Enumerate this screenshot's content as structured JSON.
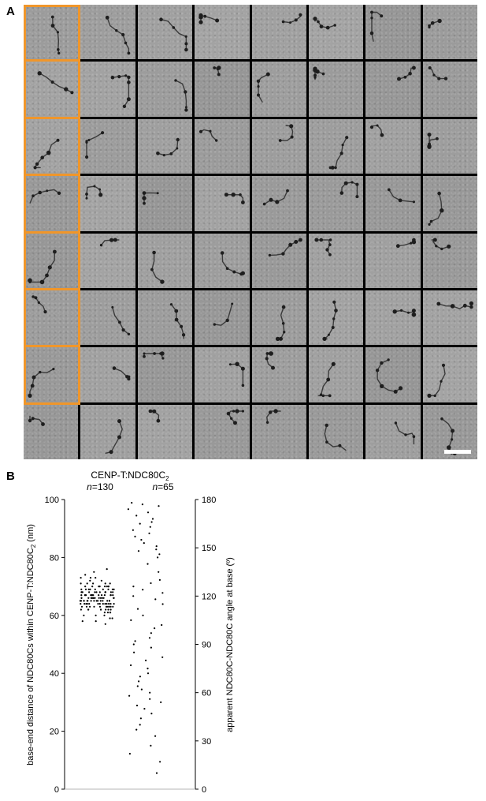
{
  "figure": {
    "panel_a_label": "A",
    "panel_b_label": "B",
    "panel_a": {
      "rows": 8,
      "cols": 8,
      "highlight_color": "#f0962a",
      "highlight_col": 0,
      "highlight_rows": 7
    },
    "panel_b_title": "CENP-T:NDC80C",
    "panel_b_title_sub": "2",
    "n_left_label": "n",
    "n_left_value": "=130",
    "n_right_label": "n",
    "n_right_value": "=65"
  },
  "chart_data": {
    "type": "scatter",
    "left_axis": {
      "label_main": "base-end distance of NDC80Cs within CENP-T:NDC80C",
      "label_sub": "2",
      "label_unit": " (nm)",
      "ticks": [
        "0",
        "20",
        "40",
        "60",
        "80",
        "100"
      ],
      "range": [
        0,
        100
      ]
    },
    "right_axis": {
      "label": "apparent NDC80C-NDC80C angle at base (º)",
      "ticks": [
        "0",
        "30",
        "60",
        "90",
        "120",
        "150",
        "180"
      ],
      "range": [
        0,
        180
      ]
    },
    "series": [
      {
        "axis": "left",
        "jitter_center": 0.25,
        "values": [
          73,
          72,
          71,
          75,
          74,
          73,
          76,
          70,
          71,
          69,
          72,
          70,
          68,
          71,
          69,
          70,
          73,
          67,
          68,
          69,
          70,
          66,
          67,
          68,
          69,
          71,
          65,
          66,
          67,
          68,
          69,
          70,
          64,
          65,
          66,
          67,
          68,
          69,
          70,
          71,
          63,
          64,
          65,
          66,
          67,
          68,
          69,
          70,
          62,
          63,
          64,
          65,
          66,
          67,
          68,
          69,
          61,
          62,
          63,
          64,
          65,
          66,
          67,
          68,
          60,
          61,
          62,
          63,
          64,
          65,
          66,
          67,
          65,
          66,
          67,
          64,
          63,
          62,
          66,
          67,
          68,
          65,
          64,
          63,
          61,
          62,
          60,
          59,
          58,
          57,
          58,
          59,
          60,
          61,
          62,
          63,
          64,
          65,
          66,
          67,
          68,
          69,
          70,
          66,
          65,
          64,
          63,
          62,
          67,
          68,
          65,
          66,
          64,
          63,
          65,
          66,
          67,
          68,
          64,
          65,
          66,
          67,
          63,
          64,
          65,
          66,
          62,
          63,
          64,
          65
        ]
      },
      {
        "axis": "right",
        "jitter_center": 0.62,
        "values": [
          178,
          177,
          176,
          174,
          172,
          170,
          168,
          166,
          165,
          163,
          161,
          159,
          157,
          155,
          153,
          151,
          149,
          148,
          146,
          144,
          140,
          135,
          130,
          128,
          126,
          124,
          122,
          120,
          118,
          115,
          112,
          108,
          105,
          102,
          100,
          97,
          94,
          92,
          90,
          88,
          85,
          82,
          80,
          77,
          75,
          72,
          70,
          67,
          64,
          62,
          60,
          58,
          56,
          54,
          52,
          50,
          47,
          44,
          40,
          37,
          33,
          27,
          22,
          17,
          10
        ]
      }
    ]
  }
}
